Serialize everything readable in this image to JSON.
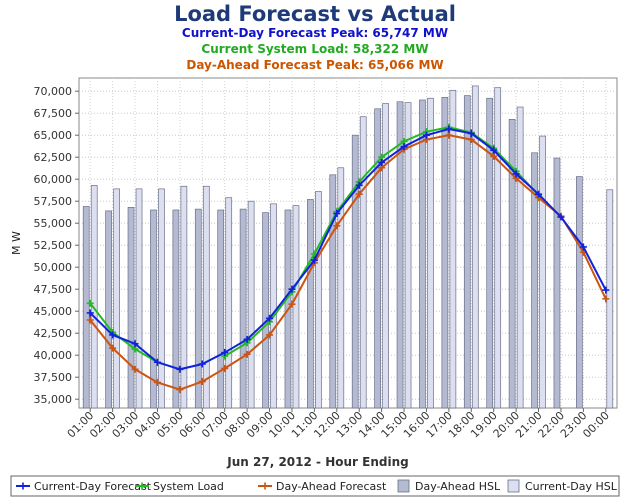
{
  "chart_data": {
    "type": "bar+line",
    "title": "Load Forecast vs Actual",
    "subtitle_lines": [
      {
        "text": "Current-Day Forecast Peak:  65,747 MW",
        "color": "#1111cc"
      },
      {
        "text": "Current System Load:  58,322 MW",
        "color": "#22aa22"
      },
      {
        "text": "Day-Ahead Forecast Peak:  65,066 MW",
        "color": "#cc5500"
      }
    ],
    "xlabel": "Jun 27, 2012 - Hour Ending",
    "ylabel": "M W",
    "ylim": [
      34000,
      71500
    ],
    "yticks": [
      35000,
      37500,
      40000,
      42500,
      45000,
      47500,
      50000,
      52500,
      55000,
      57500,
      60000,
      62500,
      65000,
      67500,
      70000
    ],
    "ytick_labels": [
      "35,000",
      "37,500",
      "40,000",
      "42,500",
      "45,000",
      "47,500",
      "50,000",
      "52,500",
      "55,000",
      "57,500",
      "60,000",
      "62,500",
      "65,000",
      "67,500",
      "70,000"
    ],
    "grid": true,
    "legend_position": "bottom",
    "categories": [
      "01:00",
      "02:00",
      "03:00",
      "04:00",
      "05:00",
      "06:00",
      "07:00",
      "08:00",
      "09:00",
      "10:00",
      "11:00",
      "12:00",
      "13:00",
      "14:00",
      "15:00",
      "16:00",
      "17:00",
      "18:00",
      "19:00",
      "20:00",
      "21:00",
      "22:00",
      "23:00",
      "00:00"
    ],
    "bar_series": [
      {
        "name": "Day-Ahead HSL",
        "color": "#b4bad2",
        "values": [
          56900,
          56400,
          56800,
          56500,
          56500,
          56600,
          56500,
          56600,
          56200,
          56500,
          57700,
          60500,
          65000,
          68000,
          68800,
          69000,
          69300,
          69500,
          69200,
          66800,
          63000,
          62400,
          60300,
          null
        ]
      },
      {
        "name": "Current-Day HSL",
        "color": "#dcdff0",
        "values": [
          59300,
          58900,
          58900,
          58900,
          59200,
          59200,
          57900,
          57500,
          57200,
          57000,
          58600,
          61300,
          67100,
          68600,
          68700,
          69200,
          70100,
          70600,
          70400,
          68200,
          64900,
          null,
          null,
          58800
        ]
      }
    ],
    "line_series": [
      {
        "name": "Current-Day Forecast",
        "color": "#1122dd",
        "values": [
          44800,
          42300,
          41300,
          39200,
          38400,
          39000,
          40300,
          41800,
          44200,
          47500,
          50800,
          56100,
          59300,
          61900,
          63700,
          65000,
          65700,
          65200,
          63300,
          60600,
          58300,
          55700,
          52300,
          47400
        ]
      },
      {
        "name": "System Load",
        "color": "#22bb22",
        "values": [
          45900,
          42600,
          40700,
          39200,
          null,
          null,
          39900,
          41400,
          43800,
          47200,
          51500,
          56300,
          59700,
          62500,
          64300,
          65400,
          65900,
          65300,
          63500,
          60900,
          58200,
          null,
          null,
          null
        ]
      },
      {
        "name": "Day-Ahead Forecast",
        "color": "#cc5511",
        "values": [
          44000,
          40800,
          38400,
          36900,
          36100,
          37000,
          38500,
          40100,
          42300,
          45800,
          50500,
          54700,
          58300,
          61300,
          63400,
          64500,
          65000,
          64500,
          62600,
          60100,
          57900,
          55800,
          51700,
          46400
        ]
      }
    ],
    "legend": [
      {
        "label": "Current-Day Forecast",
        "kind": "line",
        "color": "#1122dd"
      },
      {
        "label": "System Load",
        "kind": "line",
        "color": "#22bb22"
      },
      {
        "label": "Day-Ahead Forecast",
        "kind": "line",
        "color": "#cc5511"
      },
      {
        "label": "Day-Ahead HSL",
        "kind": "bar",
        "color": "#b4bad2"
      },
      {
        "label": "Current-Day HSL",
        "kind": "bar",
        "color": "#dcdff0"
      }
    ]
  }
}
